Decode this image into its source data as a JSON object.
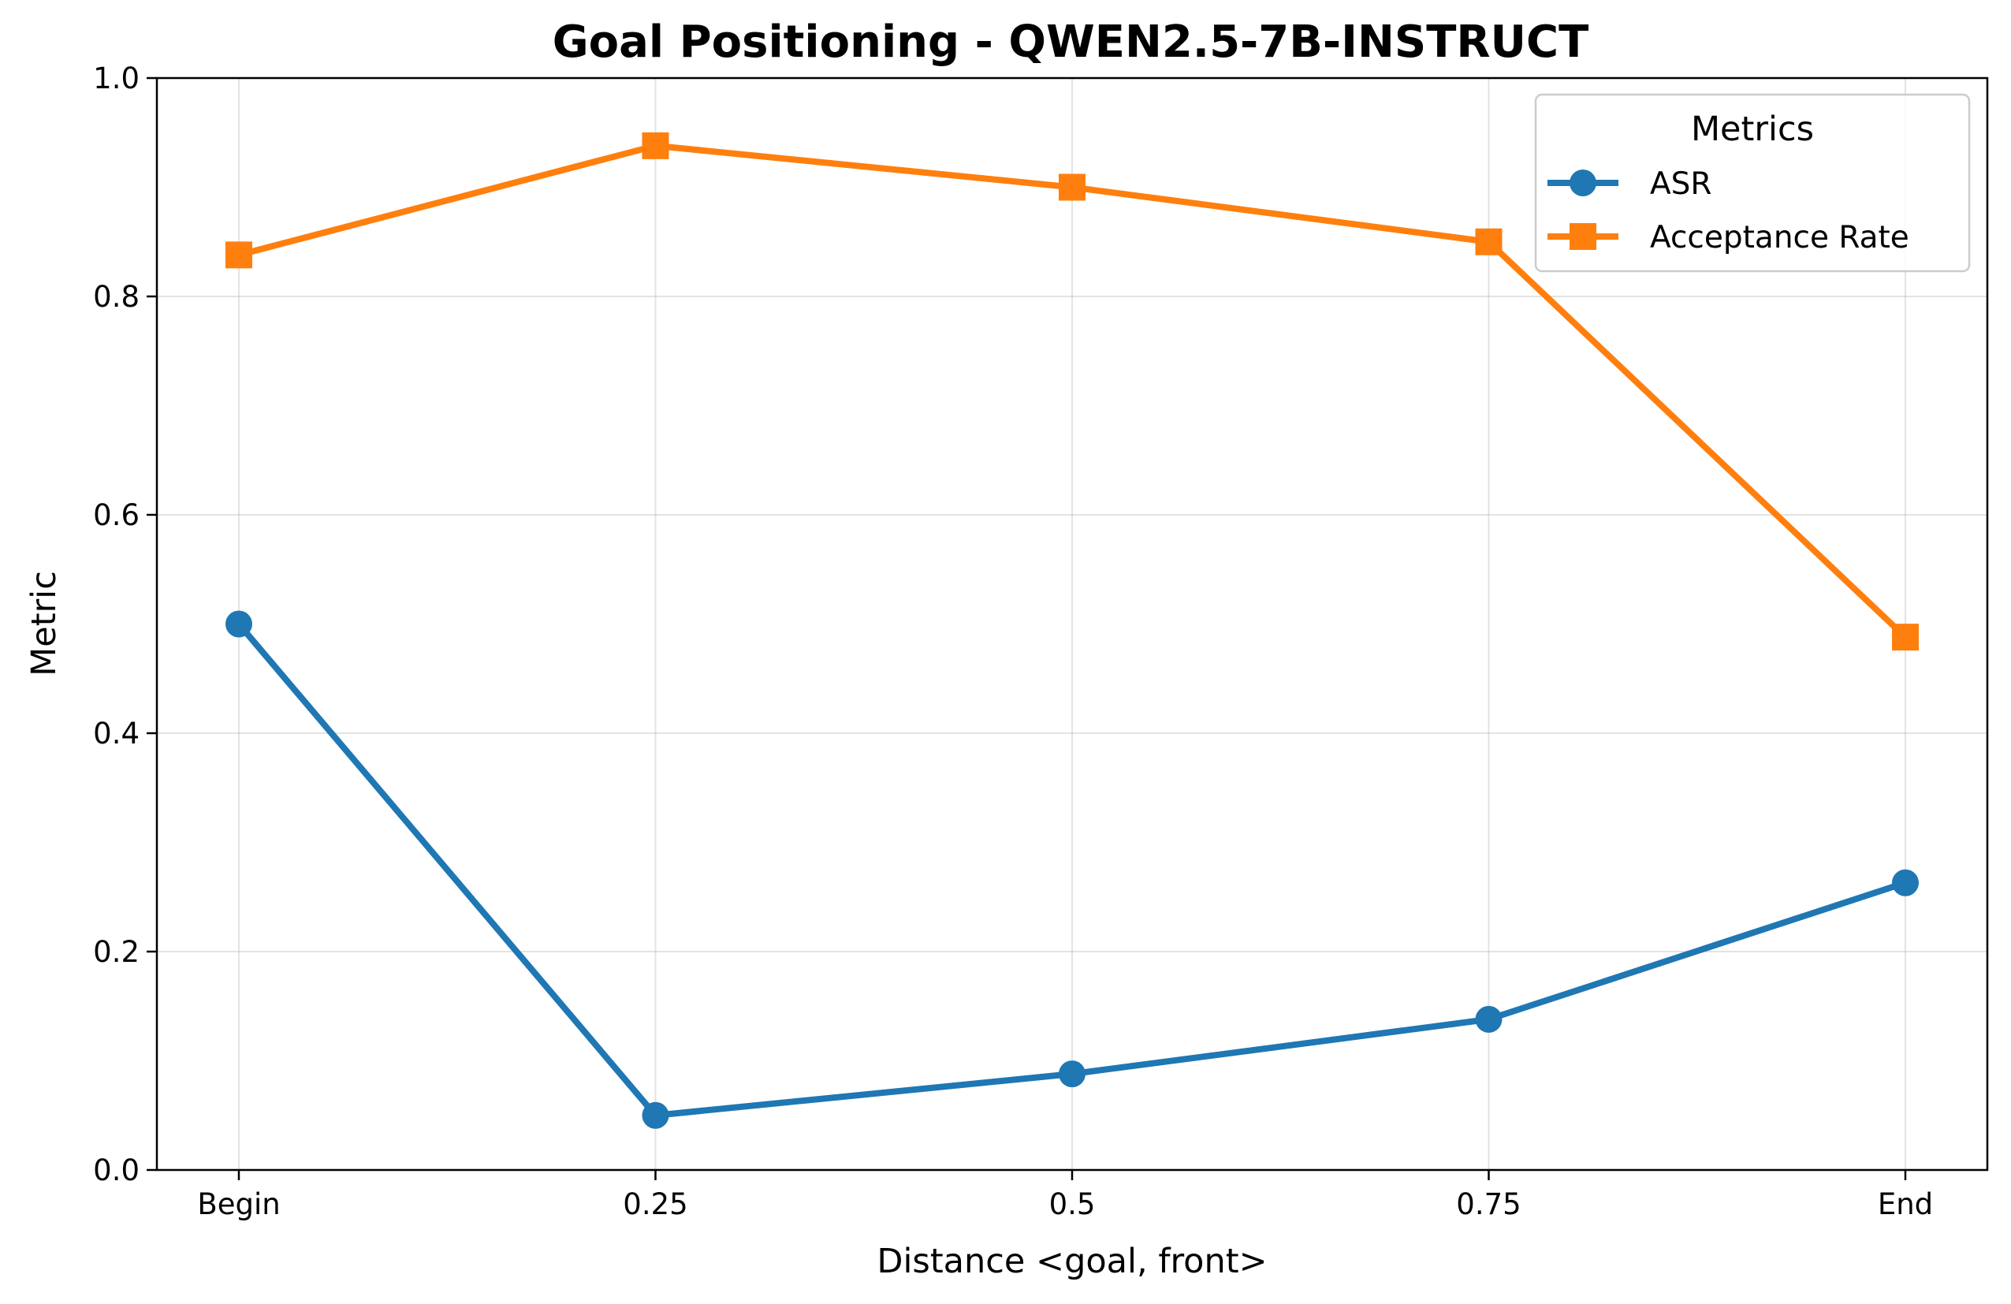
{
  "chart_data": {
    "type": "line",
    "title": "Goal Positioning - QWEN2.5-7B-INSTRUCT",
    "xlabel": "Distance <goal, front>",
    "ylabel": "Metric",
    "categories": [
      "Begin",
      "0.25",
      "0.5",
      "0.75",
      "End"
    ],
    "ylim": [
      0,
      1.0
    ],
    "yticks": [
      "0.0",
      "0.2",
      "0.4",
      "0.6",
      "0.8",
      "1.0"
    ],
    "grid": true,
    "legend": {
      "title": "Metrics",
      "placement": "top-right"
    },
    "series": [
      {
        "name": "ASR",
        "marker": "circle",
        "color": "#1f77b4",
        "values": [
          0.5,
          0.05,
          0.088,
          0.138,
          0.263
        ]
      },
      {
        "name": "Acceptance Rate",
        "marker": "square",
        "color": "#ff7f0e",
        "values": [
          0.838,
          0.938,
          0.9,
          0.85,
          0.488
        ]
      }
    ]
  }
}
